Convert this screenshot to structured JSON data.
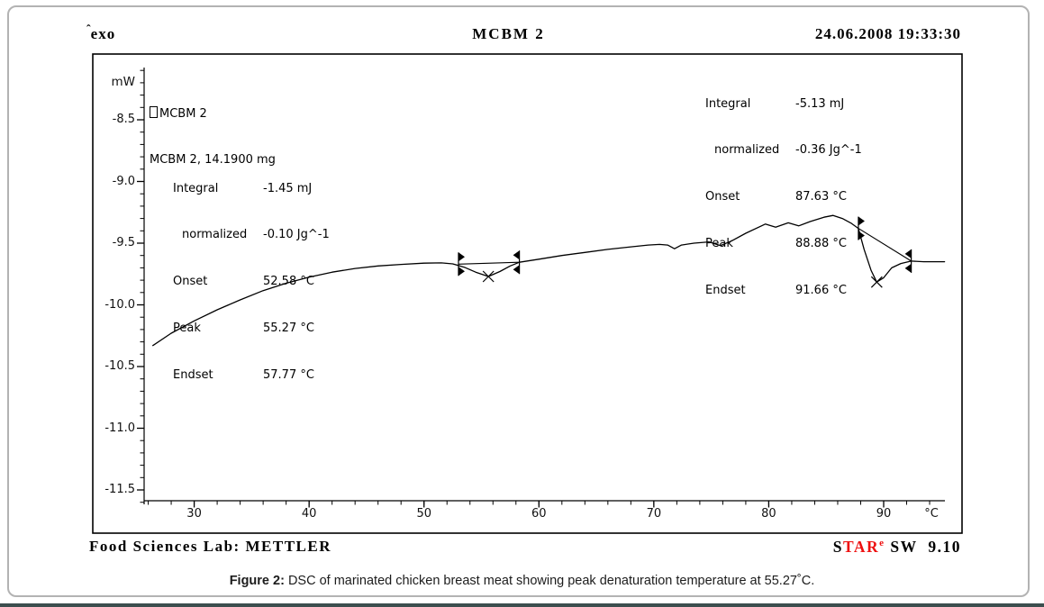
{
  "window": {
    "bg": "#ffffff",
    "border_color": "#b3b3b3",
    "bottom_bar_color": "#3c4e4e"
  },
  "header": {
    "exo_caret": "ˆ",
    "exo_label": "exo",
    "title": "MCBM 2",
    "datetime": "24.06.2008 19:33:30"
  },
  "sample": {
    "legend_name": "MCBM 2",
    "description": "MCBM 2, 14.1900 mg"
  },
  "peak_annotations": [
    {
      "rows": [
        {
          "label": "Integral",
          "value": "-1.45 mJ"
        },
        {
          "label": "normalized",
          "value": "-0.10 Jg^-1"
        },
        {
          "label": "Onset",
          "value": "52.58 °C"
        },
        {
          "label": "Peak",
          "value": "55.27 °C"
        },
        {
          "label": "Endset",
          "value": "57.77 °C"
        }
      ]
    },
    {
      "rows": [
        {
          "label": "Integral",
          "value": "-5.13 mJ"
        },
        {
          "label": "normalized",
          "value": "-0.36 Jg^-1"
        },
        {
          "label": "Onset",
          "value": "87.63 °C"
        },
        {
          "label": "Peak",
          "value": "88.88 °C"
        },
        {
          "label": "Endset",
          "value": "91.66 °C"
        }
      ]
    }
  ],
  "footer": {
    "lab": "Food Sciences Lab: METTLER",
    "software": {
      "s_black": "S",
      "tar_red": "TAR",
      "e_sup": "e",
      "rest": " SW  9.10"
    },
    "accent_red": "#ee1111"
  },
  "caption": {
    "prefix": "Figure 2:",
    "text": " DSC of marinated chicken breast meat showing peak denaturation temperature at 55.27˚C."
  },
  "chart_data": {
    "type": "line",
    "title": "MCBM 2",
    "x_unit": "°C",
    "y_unit": "mW",
    "x_ticks": [
      30,
      40,
      50,
      60,
      70,
      80,
      90
    ],
    "y_ticks": [
      -8.5,
      -9.0,
      -9.5,
      -10.0,
      -10.5,
      -11.0,
      -11.5
    ],
    "x_minor_step": 2,
    "y_minor_step": 0.1,
    "x_axis_range": [
      25.7,
      95.3
    ],
    "y_axis_range": [
      -11.6,
      -8.1
    ],
    "grid": false,
    "series": [
      {
        "name": "MCBM 2",
        "points": [
          [
            26.4,
            -10.33
          ],
          [
            28,
            -10.23
          ],
          [
            30,
            -10.13
          ],
          [
            32,
            -10.04
          ],
          [
            34,
            -9.96
          ],
          [
            36,
            -9.885
          ],
          [
            38,
            -9.825
          ],
          [
            40,
            -9.775
          ],
          [
            42,
            -9.735
          ],
          [
            44,
            -9.705
          ],
          [
            46,
            -9.685
          ],
          [
            48,
            -9.672
          ],
          [
            50,
            -9.662
          ],
          [
            51.5,
            -9.66
          ],
          [
            52.5,
            -9.668
          ],
          [
            53.5,
            -9.695
          ],
          [
            54.5,
            -9.735
          ],
          [
            55.6,
            -9.77
          ],
          [
            56.6,
            -9.73
          ],
          [
            57.5,
            -9.685
          ],
          [
            58.3,
            -9.655
          ],
          [
            60,
            -9.63
          ],
          [
            62,
            -9.6
          ],
          [
            64,
            -9.575
          ],
          [
            66,
            -9.55
          ],
          [
            68,
            -9.53
          ],
          [
            69.5,
            -9.515
          ],
          [
            70.5,
            -9.51
          ],
          [
            71.2,
            -9.515
          ],
          [
            71.8,
            -9.545
          ],
          [
            72.4,
            -9.515
          ],
          [
            73.5,
            -9.5
          ],
          [
            74.8,
            -9.49
          ],
          [
            75.8,
            -9.52
          ],
          [
            76.8,
            -9.48
          ],
          [
            78,
            -9.42
          ],
          [
            79.7,
            -9.345
          ],
          [
            80.6,
            -9.37
          ],
          [
            81.7,
            -9.335
          ],
          [
            82.6,
            -9.36
          ],
          [
            83.6,
            -9.325
          ],
          [
            84.8,
            -9.29
          ],
          [
            85.6,
            -9.275
          ],
          [
            86.4,
            -9.3
          ],
          [
            87.2,
            -9.34
          ],
          [
            87.8,
            -9.38
          ],
          [
            88.3,
            -9.55
          ],
          [
            88.9,
            -9.72
          ],
          [
            89.4,
            -9.815
          ],
          [
            90,
            -9.78
          ],
          [
            90.7,
            -9.7
          ],
          [
            91.5,
            -9.665
          ],
          [
            92.4,
            -9.645
          ],
          [
            93.5,
            -9.65
          ],
          [
            94.5,
            -9.65
          ],
          [
            95.3,
            -9.65
          ]
        ]
      }
    ],
    "peaks": [
      {
        "baseline_start": [
          53.0,
          -9.67
        ],
        "baseline_end": [
          58.3,
          -9.655
        ],
        "peak_marker": [
          55.6,
          -9.77
        ],
        "onset": 52.58,
        "peak": 55.27,
        "endset": 57.77,
        "integral_mJ": -1.45,
        "normalized_Jg": -0.1
      },
      {
        "baseline_start": [
          87.8,
          -9.38
        ],
        "baseline_end": [
          92.4,
          -9.645
        ],
        "peak_marker": [
          89.4,
          -9.815
        ],
        "onset": 87.63,
        "peak": 88.88,
        "endset": 91.66,
        "integral_mJ": -5.13,
        "normalized_Jg": -0.36
      }
    ]
  }
}
